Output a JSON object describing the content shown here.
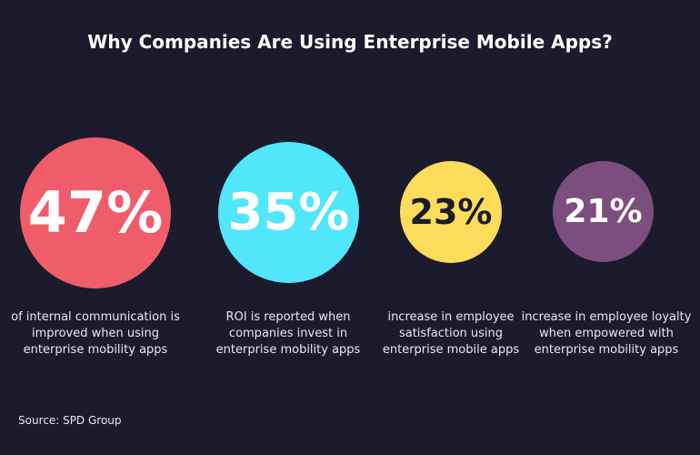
{
  "title": "Why Companies Are Using Enterprise Mobile Apps?",
  "source": "Source: SPD Group",
  "colors": {
    "background": "#1c1a2d",
    "stat1": "#ef5d6b",
    "stat2": "#52e6fb",
    "stat3": "#fddc5c",
    "stat4": "#7b4e7e"
  },
  "chart_data": {
    "type": "bubble",
    "title": "Why Companies Are Using Enterprise Mobile Apps?",
    "categories": [
      "of internal communication is improved when using enterprise mobility apps",
      "ROI is reported when companies invest in enterprise mobility apps",
      "increase in employee satisfaction using enterprise mobile apps",
      "increase in employee loyalty when empowered with enterprise mobility apps"
    ],
    "values": [
      47,
      35,
      23,
      21
    ],
    "labels": [
      "47%",
      "35%",
      "23%",
      "21%"
    ],
    "unit": "%"
  },
  "stats": [
    {
      "value": "47%",
      "caption_lines": [
        "of internal communication is",
        "improved when using",
        "enterprise mobility apps"
      ]
    },
    {
      "value": "35%",
      "caption_lines": [
        "ROI is reported when",
        "companies invest in",
        "enterprise mobility apps"
      ]
    },
    {
      "value": "23%",
      "caption_lines": [
        "increase in employee",
        "satisfaction using",
        "enterprise mobile apps"
      ]
    },
    {
      "value": "21%",
      "caption_lines": [
        "increase in employee loyalty",
        "when empowered with",
        "enterprise mobility apps"
      ]
    }
  ]
}
